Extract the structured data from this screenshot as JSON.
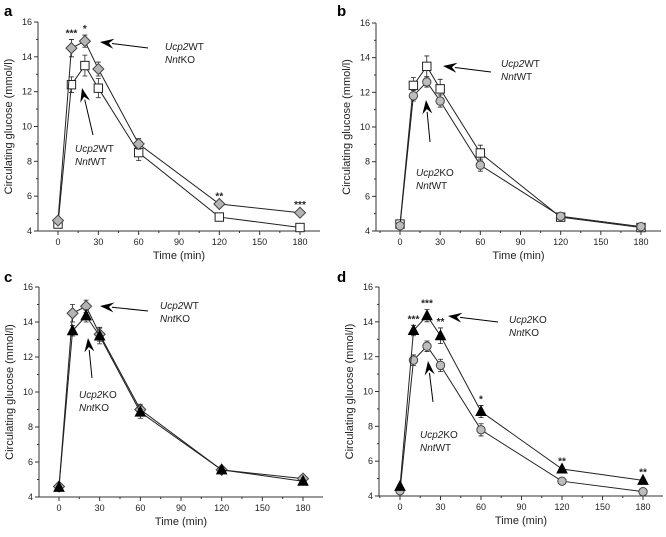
{
  "chart_data": [
    {
      "type": "line",
      "panel": "a",
      "xlabel": "Time (min)",
      "ylabel": "Circulating glucose (mmol/l)",
      "xlim": [
        -10,
        190
      ],
      "ylim": [
        4,
        16
      ],
      "xticks": [
        0,
        30,
        60,
        90,
        120,
        150,
        180
      ],
      "yticks": [
        4,
        6,
        8,
        10,
        12,
        14,
        16
      ],
      "x": [
        0,
        10,
        20,
        30,
        60,
        120,
        180
      ],
      "series": [
        {
          "name": "Ucp2WT NntWT",
          "marker": "square",
          "values": [
            4.4,
            12.4,
            13.5,
            12.2,
            8.5,
            4.8,
            4.2
          ],
          "errors": [
            0.2,
            0.45,
            0.6,
            0.55,
            0.45,
            0.2,
            0.15
          ]
        },
        {
          "name": "Ucp2WT NntKO",
          "marker": "diamond",
          "values": [
            4.6,
            14.5,
            14.9,
            13.3,
            9.0,
            5.55,
            5.05
          ],
          "errors": [
            0.1,
            0.5,
            0.35,
            0.4,
            0.3,
            0.1,
            0.1
          ],
          "significance": [
            "",
            "***",
            "*",
            "",
            "",
            "**",
            "***"
          ]
        }
      ],
      "annotations": [
        {
          "gene1": "Ucp2",
          "gt1": "WT",
          "gene2": "Nnt",
          "gt2": "KO"
        },
        {
          "gene1": "Ucp2",
          "gt1": "WT",
          "gene2": "Nnt",
          "gt2": "WT"
        }
      ]
    },
    {
      "type": "line",
      "panel": "b",
      "xlabel": "Time (min)",
      "ylabel": "Circulating glucose (mmol/l)",
      "xlim": [
        -10,
        190
      ],
      "ylim": [
        4,
        16
      ],
      "xticks": [
        0,
        30,
        60,
        90,
        120,
        150,
        180
      ],
      "yticks": [
        4,
        6,
        8,
        10,
        12,
        14,
        16
      ],
      "x": [
        0,
        10,
        20,
        30,
        60,
        120,
        180
      ],
      "series": [
        {
          "name": "Ucp2WT NntWT",
          "marker": "square",
          "values": [
            4.4,
            12.4,
            13.5,
            12.2,
            8.5,
            4.8,
            4.2
          ],
          "errors": [
            0.2,
            0.45,
            0.6,
            0.55,
            0.45,
            0.2,
            0.15
          ]
        },
        {
          "name": "Ucp2KO NntWT",
          "marker": "circle",
          "values": [
            4.3,
            11.8,
            12.6,
            11.5,
            7.8,
            4.85,
            4.25
          ],
          "errors": [
            0.1,
            0.3,
            0.3,
            0.35,
            0.35,
            0.15,
            0.1
          ]
        }
      ],
      "annotations": [
        {
          "gene1": "Ucp2",
          "gt1": "WT",
          "gene2": "Nnt",
          "gt2": "WT"
        },
        {
          "gene1": "Ucp2",
          "gt1": "KO",
          "gene2": "Nnt",
          "gt2": "WT"
        }
      ]
    },
    {
      "type": "line",
      "panel": "c",
      "xlabel": "Time (min)",
      "ylabel": "Circulating glucose (mmol/l)",
      "xlim": [
        -10,
        190
      ],
      "ylim": [
        4,
        16
      ],
      "xticks": [
        0,
        30,
        60,
        90,
        120,
        150,
        180
      ],
      "yticks": [
        4,
        6,
        8,
        10,
        12,
        14,
        16
      ],
      "x": [
        0,
        10,
        20,
        30,
        60,
        120,
        180
      ],
      "series": [
        {
          "name": "Ucp2WT NntKO",
          "marker": "diamond",
          "values": [
            4.6,
            14.5,
            14.9,
            13.3,
            9.0,
            5.55,
            5.05
          ],
          "errors": [
            0.1,
            0.5,
            0.35,
            0.4,
            0.3,
            0.1,
            0.1
          ]
        },
        {
          "name": "Ucp2KO NntKO",
          "marker": "triangle",
          "values": [
            4.55,
            13.5,
            14.35,
            13.2,
            8.85,
            5.55,
            4.9
          ],
          "errors": [
            0.1,
            0.3,
            0.35,
            0.45,
            0.35,
            0.1,
            0.1
          ]
        }
      ],
      "annotations": [
        {
          "gene1": "Ucp2",
          "gt1": "WT",
          "gene2": "Nnt",
          "gt2": "KO"
        },
        {
          "gene1": "Ucp2",
          "gt1": "KO",
          "gene2": "Nnt",
          "gt2": "KO"
        }
      ]
    },
    {
      "type": "line",
      "panel": "d",
      "xlabel": "Time (min)",
      "ylabel": "Circulating glucose (mmol/l)",
      "xlim": [
        -10,
        190
      ],
      "ylim": [
        4,
        16
      ],
      "xticks": [
        0,
        30,
        60,
        90,
        120,
        150,
        180
      ],
      "yticks": [
        4,
        6,
        8,
        10,
        12,
        14,
        16
      ],
      "x": [
        0,
        10,
        20,
        30,
        60,
        120,
        180
      ],
      "series": [
        {
          "name": "Ucp2KO NntWT",
          "marker": "circle",
          "values": [
            4.3,
            11.8,
            12.6,
            11.5,
            7.8,
            4.85,
            4.25
          ],
          "errors": [
            0.1,
            0.3,
            0.3,
            0.35,
            0.35,
            0.15,
            0.1
          ]
        },
        {
          "name": "Ucp2KO NntKO",
          "marker": "triangle",
          "values": [
            4.55,
            13.5,
            14.35,
            13.2,
            8.85,
            5.55,
            4.9
          ],
          "errors": [
            0.1,
            0.3,
            0.35,
            0.45,
            0.35,
            0.1,
            0.1
          ],
          "significance": [
            "",
            "***",
            "***",
            "**",
            "*",
            "**",
            "**"
          ]
        }
      ],
      "annotations": [
        {
          "gene1": "Ucp2",
          "gt1": "KO",
          "gene2": "Nnt",
          "gt2": "KO"
        },
        {
          "gene1": "Ucp2",
          "gt1": "KO",
          "gene2": "Nnt",
          "gt2": "WT"
        }
      ]
    }
  ],
  "colors": {
    "square": "#ffffff",
    "diamond": "#b4b4b4",
    "circle": "#bdbdbd",
    "triangle": "#000000",
    "line": "#222222"
  }
}
